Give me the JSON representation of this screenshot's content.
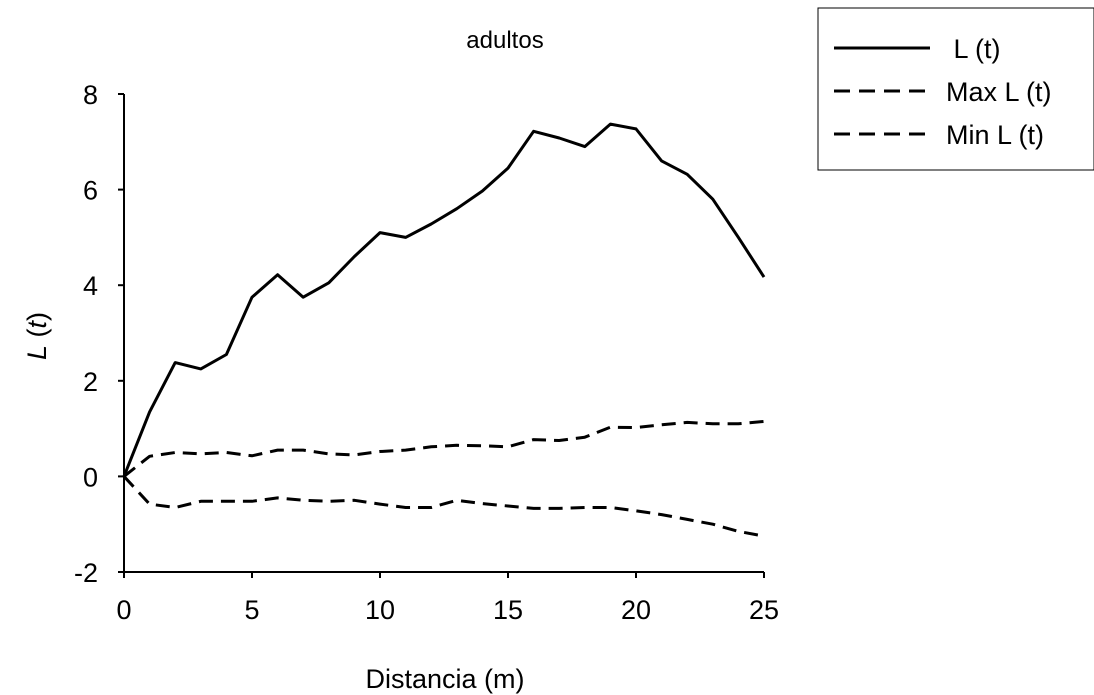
{
  "chart_data": {
    "type": "line",
    "title": "adultos",
    "xlabel": "Distancia (m)",
    "ylabel": "L (t)",
    "xlim": [
      0,
      25
    ],
    "ylim": [
      -2,
      8
    ],
    "xticks": [
      0,
      5,
      10,
      15,
      20,
      25
    ],
    "yticks": [
      -2,
      0,
      2,
      4,
      6,
      8
    ],
    "grid": false,
    "legend_position": "top-right",
    "x": [
      0,
      1,
      2,
      3,
      4,
      5,
      6,
      7,
      8,
      9,
      10,
      11,
      12,
      13,
      14,
      15,
      16,
      17,
      18,
      19,
      20,
      21,
      22,
      23,
      24,
      25
    ],
    "series": [
      {
        "name": " L (t)",
        "style": "solid",
        "color": "#000000",
        "values": [
          0,
          1.35,
          2.38,
          2.25,
          2.55,
          3.75,
          4.22,
          3.75,
          4.05,
          4.6,
          5.1,
          5.0,
          5.28,
          5.6,
          5.97,
          6.45,
          7.22,
          7.08,
          6.9,
          7.37,
          7.27,
          6.6,
          6.32,
          5.8,
          5.0,
          4.17
        ]
      },
      {
        "name": "Max L (t)",
        "style": "dashed",
        "color": "#000000",
        "values": [
          0,
          0.42,
          0.5,
          0.47,
          0.5,
          0.43,
          0.55,
          0.55,
          0.47,
          0.45,
          0.52,
          0.55,
          0.62,
          0.65,
          0.64,
          0.62,
          0.77,
          0.75,
          0.82,
          1.03,
          1.02,
          1.08,
          1.13,
          1.1,
          1.1,
          1.15
        ]
      },
      {
        "name": "Min L (t)",
        "style": "dashed",
        "color": "#000000",
        "values": [
          0,
          -0.58,
          -0.65,
          -0.52,
          -0.52,
          -0.52,
          -0.45,
          -0.5,
          -0.52,
          -0.5,
          -0.58,
          -0.65,
          -0.65,
          -0.5,
          -0.57,
          -0.62,
          -0.67,
          -0.67,
          -0.65,
          -0.65,
          -0.72,
          -0.8,
          -0.9,
          -1.0,
          -1.15,
          -1.25
        ]
      }
    ]
  }
}
